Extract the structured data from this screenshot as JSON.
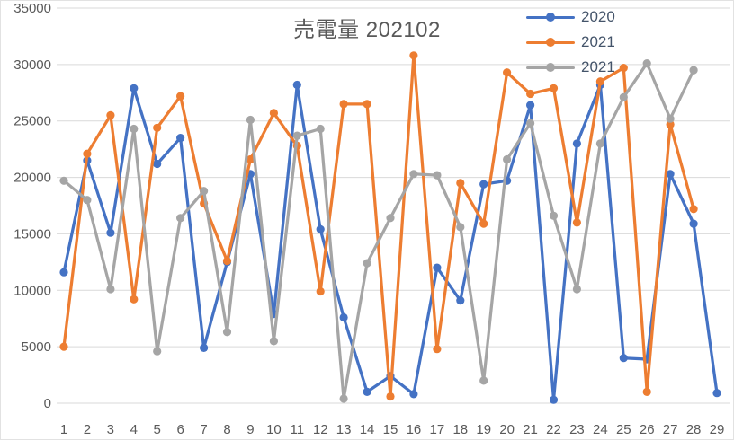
{
  "title": "売電量 202102",
  "legend": {
    "items": [
      {
        "label": "2020",
        "color": "#4472C4"
      },
      {
        "label": "2021",
        "color": "#ED7D31"
      },
      {
        "label": "2021",
        "color": "#A5A5A5"
      }
    ]
  },
  "colors": {
    "grid": "#D9D9D9",
    "axis_text": "#595959",
    "title_text": "#595959",
    "background": "#FFFFFF"
  },
  "chart_data": {
    "type": "line",
    "title": "売電量 202102",
    "x": [
      1,
      2,
      3,
      4,
      5,
      6,
      7,
      8,
      9,
      10,
      11,
      12,
      13,
      14,
      15,
      16,
      17,
      18,
      19,
      20,
      21,
      22,
      23,
      24,
      25,
      26,
      27,
      28,
      29
    ],
    "series": [
      {
        "name": "2020",
        "color": "#4472C4",
        "values": [
          11600,
          21500,
          15100,
          27900,
          21200,
          23500,
          4900,
          12500,
          20300,
          7900,
          28200,
          15400,
          7600,
          1000,
          2400,
          800,
          12000,
          9100,
          19400,
          19700,
          26400,
          300,
          23000,
          28200,
          4000,
          3900,
          20300,
          15900,
          900
        ]
      },
      {
        "name": "2021",
        "color": "#ED7D31",
        "values": [
          5000,
          22100,
          25500,
          9200,
          24400,
          27200,
          17700,
          12600,
          21600,
          25700,
          22800,
          9900,
          26500,
          26500,
          600,
          30800,
          4800,
          19500,
          15900,
          29300,
          27400,
          27900,
          16000,
          28500,
          29700,
          1000,
          24700,
          17200
        ]
      },
      {
        "name": "2021",
        "color": "#A5A5A5",
        "values": [
          19700,
          18000,
          10100,
          24300,
          4600,
          16400,
          18800,
          6300,
          25100,
          5500,
          23700,
          24300,
          400,
          12400,
          16400,
          20300,
          20200,
          15600,
          2000,
          21600,
          24800,
          16600,
          10100,
          23000,
          27100,
          30100,
          25200,
          29500
        ]
      }
    ],
    "ylim": [
      0,
      35000
    ],
    "y_ticks": [
      0,
      5000,
      10000,
      15000,
      20000,
      25000,
      30000,
      35000
    ],
    "x_ticks": [
      1,
      2,
      3,
      4,
      5,
      6,
      7,
      8,
      9,
      10,
      11,
      12,
      13,
      14,
      15,
      16,
      17,
      18,
      19,
      20,
      21,
      22,
      23,
      24,
      25,
      26,
      27,
      28,
      29
    ],
    "grid": true,
    "legend_position": "top-right",
    "marker": "circle"
  }
}
